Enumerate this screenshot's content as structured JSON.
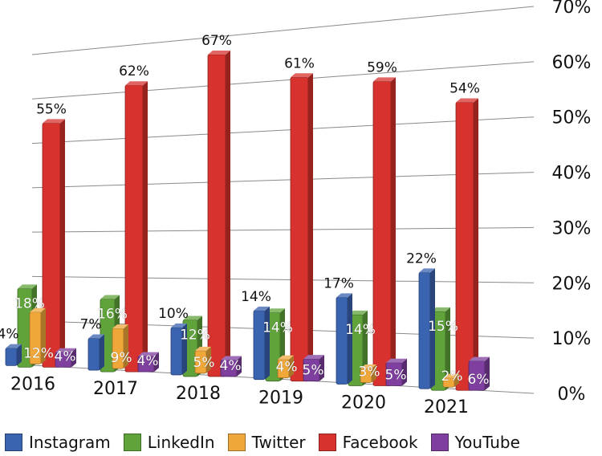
{
  "chart_data": {
    "type": "bar",
    "categories": [
      "2016",
      "2017",
      "2018",
      "2019",
      "2020",
      "2021"
    ],
    "series": [
      {
        "name": "Instagram",
        "color": "#3a63b0",
        "values": [
          4,
          7,
          10,
          14,
          17,
          22
        ],
        "labels": [
          "4%",
          "7%",
          "10%",
          "14%",
          "17%",
          "22%"
        ]
      },
      {
        "name": "LinkedIn",
        "color": "#5fa33a",
        "values": [
          18,
          16,
          12,
          14,
          14,
          15
        ],
        "labels": [
          "18%",
          "16%",
          "12%",
          "14%",
          "14%",
          "15%"
        ]
      },
      {
        "name": "Twitter",
        "color": "#f0a73a",
        "values": [
          12,
          9,
          5,
          4,
          3,
          2
        ],
        "labels": [
          "12%",
          "9%",
          "5%",
          "4%",
          "3%",
          "2%"
        ]
      },
      {
        "name": "Facebook",
        "color": "#d7322d",
        "values": [
          55,
          62,
          67,
          61,
          59,
          54
        ],
        "labels": [
          "55%",
          "62%",
          "67%",
          "61%",
          "59%",
          "54%"
        ]
      },
      {
        "name": "YouTube",
        "color": "#7e3f9e",
        "values": [
          4,
          4,
          4,
          5,
          5,
          6
        ],
        "labels": [
          "4%",
          "4%",
          "4%",
          "5%",
          "5%",
          "6%"
        ]
      }
    ],
    "yticks": [
      "0%",
      "10%",
      "20%",
      "30%",
      "40%",
      "50%",
      "60%",
      "70%"
    ],
    "ylim": [
      0,
      70
    ],
    "grid": true,
    "legend_position": "bottom",
    "title": "",
    "xlabel": "",
    "ylabel": ""
  }
}
